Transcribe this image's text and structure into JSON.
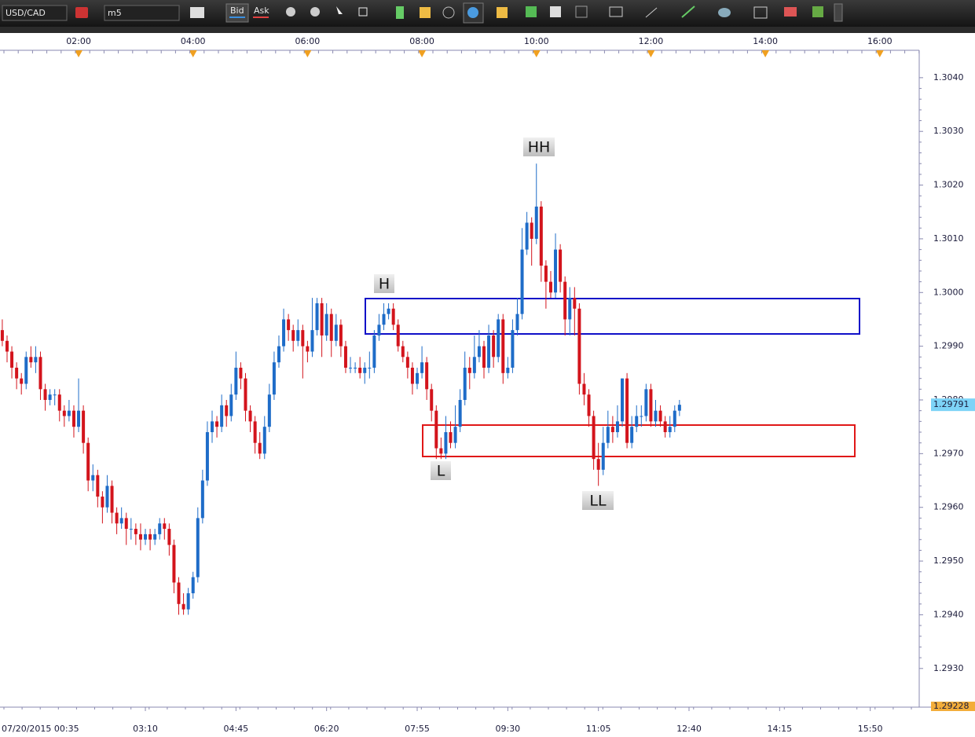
{
  "toolbar": {
    "symbol": "USD/CAD",
    "timeframe": "m5",
    "bid": "Bid",
    "ask": "Ask"
  },
  "chart_data": {
    "type": "candlestick",
    "up_color": "#1e6cc8",
    "down_color": "#d3141c",
    "annotations": [
      "HH",
      "H",
      "L",
      "LL"
    ],
    "ylim": [
      1.29228,
      1.30451
    ],
    "yticks": [
      {
        "value": 1.304,
        "label": "1.3040"
      },
      {
        "value": 1.303,
        "label": "1.3030"
      },
      {
        "value": 1.302,
        "label": "1.3020"
      },
      {
        "value": 1.301,
        "label": "1.3010"
      },
      {
        "value": 1.3,
        "label": "1.3000"
      },
      {
        "value": 1.299,
        "label": "1.2990"
      },
      {
        "value": 1.298,
        "label": "1.2980"
      },
      {
        "value": 1.297,
        "label": "1.2970"
      },
      {
        "value": 1.296,
        "label": "1.2960"
      },
      {
        "value": 1.295,
        "label": "1.2950"
      },
      {
        "value": 1.294,
        "label": "1.2940"
      },
      {
        "value": 1.293,
        "label": "1.2930"
      }
    ],
    "top_xticks": [
      "02:00",
      "04:00",
      "06:00",
      "08:00",
      "10:00",
      "12:00",
      "14:00",
      "16:00"
    ],
    "xticks": [
      {
        "value": "00:35",
        "label": "07/20/2015 00:35"
      },
      "03:10",
      "04:45",
      "06:20",
      "07:55",
      "09:30",
      "11:05",
      "12:40",
      "14:15",
      "15:50"
    ],
    "x": [
      "00:40",
      "00:45",
      "00:50",
      "00:55",
      "01:00",
      "01:05",
      "01:10",
      "01:15",
      "01:20",
      "01:25",
      "01:30",
      "01:35",
      "01:40",
      "01:45",
      "01:50",
      "01:55",
      "02:00",
      "02:05",
      "02:10",
      "02:15",
      "02:20",
      "02:25",
      "02:30",
      "02:35",
      "02:40",
      "02:45",
      "02:50",
      "02:55",
      "03:00",
      "03:05",
      "03:10",
      "03:15",
      "03:20",
      "03:25",
      "03:30",
      "03:35",
      "03:40",
      "03:45",
      "03:50",
      "03:55",
      "04:00",
      "04:05",
      "04:10",
      "04:15",
      "04:20",
      "04:25",
      "04:30",
      "04:35",
      "04:40",
      "04:45",
      "04:50",
      "04:55",
      "05:00",
      "05:05",
      "05:10",
      "05:15",
      "05:20",
      "05:25",
      "05:30",
      "05:35",
      "05:40",
      "05:45",
      "05:50",
      "05:55",
      "06:00",
      "06:05",
      "06:10",
      "06:15",
      "06:20",
      "06:25",
      "06:30",
      "06:35",
      "06:40",
      "06:45",
      "06:50",
      "06:55",
      "07:00",
      "07:05",
      "07:10",
      "07:15",
      "07:20",
      "07:25",
      "07:30",
      "07:35",
      "07:40",
      "07:45",
      "07:50",
      "07:55",
      "08:00",
      "08:05",
      "08:10",
      "08:15",
      "08:20",
      "08:25",
      "08:30",
      "08:35",
      "08:40",
      "08:45",
      "08:50",
      "08:55",
      "09:00",
      "09:05",
      "09:10",
      "09:15",
      "09:20",
      "09:25",
      "09:30",
      "09:35",
      "09:40",
      "09:45",
      "09:50",
      "09:55",
      "10:00",
      "10:05",
      "10:10",
      "10:15",
      "10:20",
      "10:25",
      "10:30",
      "10:35",
      "10:40",
      "10:45",
      "10:50",
      "10:55",
      "11:00",
      "11:05",
      "11:10",
      "11:15",
      "11:20",
      "11:25",
      "11:30",
      "11:35",
      "11:40",
      "11:45",
      "11:50",
      "11:55",
      "12:00",
      "12:05",
      "12:10",
      "12:15",
      "12:20",
      "12:25",
      "12:30"
    ],
    "series": [
      {
        "name": "USD/CAD",
        "ohlc": [
          [
            1.2993,
            1.2995,
            1.299,
            1.2991
          ],
          [
            1.2991,
            1.2992,
            1.2987,
            1.2989
          ],
          [
            1.2989,
            1.299,
            1.2984,
            1.2986
          ],
          [
            1.2986,
            1.2987,
            1.2982,
            1.2984
          ],
          [
            1.2984,
            1.2985,
            1.2981,
            1.2983
          ],
          [
            1.2983,
            1.2989,
            1.2982,
            1.2988
          ],
          [
            1.2988,
            1.299,
            1.2986,
            1.2987
          ],
          [
            1.2987,
            1.299,
            1.2985,
            1.2988
          ],
          [
            1.2988,
            1.2989,
            1.298,
            1.2982
          ],
          [
            1.2982,
            1.2983,
            1.2978,
            1.298
          ],
          [
            1.298,
            1.2982,
            1.2979,
            1.2981
          ],
          [
            1.2981,
            1.2982,
            1.2979,
            1.2981
          ],
          [
            1.2981,
            1.2982,
            1.2976,
            1.2978
          ],
          [
            1.2978,
            1.2979,
            1.2975,
            1.2977
          ],
          [
            1.2977,
            1.298,
            1.2976,
            1.2978
          ],
          [
            1.2978,
            1.2979,
            1.2973,
            1.2975
          ],
          [
            1.2975,
            1.2984,
            1.2974,
            1.2978
          ],
          [
            1.2978,
            1.2979,
            1.297,
            1.2972
          ],
          [
            1.2972,
            1.2973,
            1.2963,
            1.2965
          ],
          [
            1.2965,
            1.2968,
            1.2963,
            1.2966
          ],
          [
            1.2966,
            1.2967,
            1.296,
            1.2962
          ],
          [
            1.2962,
            1.2963,
            1.2957,
            1.296
          ],
          [
            1.296,
            1.2966,
            1.2959,
            1.2964
          ],
          [
            1.2964,
            1.2965,
            1.2957,
            1.2959
          ],
          [
            1.2959,
            1.296,
            1.2955,
            1.2957
          ],
          [
            1.2957,
            1.296,
            1.2956,
            1.2958
          ],
          [
            1.2958,
            1.2959,
            1.2953,
            1.2956
          ],
          [
            1.2956,
            1.2958,
            1.2954,
            1.2956
          ],
          [
            1.2956,
            1.2957,
            1.2953,
            1.2955
          ],
          [
            1.2955,
            1.2957,
            1.2952,
            1.2954
          ],
          [
            1.2954,
            1.2956,
            1.2953,
            1.2955
          ],
          [
            1.2955,
            1.2956,
            1.2952,
            1.2954
          ],
          [
            1.2954,
            1.2956,
            1.2953,
            1.2955
          ],
          [
            1.2955,
            1.2958,
            1.2954,
            1.2957
          ],
          [
            1.2957,
            1.2958,
            1.2954,
            1.2956
          ],
          [
            1.2956,
            1.2957,
            1.2951,
            1.2953
          ],
          [
            1.2953,
            1.2954,
            1.2944,
            1.2946
          ],
          [
            1.2946,
            1.2947,
            1.294,
            1.2942
          ],
          [
            1.2942,
            1.2944,
            1.294,
            1.2941
          ],
          [
            1.2941,
            1.2945,
            1.294,
            1.2944
          ],
          [
            1.2944,
            1.2948,
            1.2943,
            1.2947
          ],
          [
            1.2947,
            1.296,
            1.2946,
            1.2958
          ],
          [
            1.2958,
            1.2967,
            1.2957,
            1.2965
          ],
          [
            1.2965,
            1.2976,
            1.2964,
            1.2974
          ],
          [
            1.2974,
            1.2978,
            1.2972,
            1.2976
          ],
          [
            1.2976,
            1.2977,
            1.2973,
            1.2975
          ],
          [
            1.2975,
            1.2981,
            1.2974,
            1.2979
          ],
          [
            1.2979,
            1.298,
            1.2975,
            1.2977
          ],
          [
            1.2977,
            1.2983,
            1.2976,
            1.2981
          ],
          [
            1.2981,
            1.2989,
            1.298,
            1.2986
          ],
          [
            1.2986,
            1.2987,
            1.2982,
            1.2984
          ],
          [
            1.2984,
            1.2985,
            1.2976,
            1.2978
          ],
          [
            1.2978,
            1.2979,
            1.2974,
            1.2976
          ],
          [
            1.2976,
            1.2977,
            1.297,
            1.2972
          ],
          [
            1.2972,
            1.2974,
            1.2969,
            1.297
          ],
          [
            1.297,
            1.2977,
            1.2969,
            1.2975
          ],
          [
            1.2975,
            1.2983,
            1.2974,
            1.2981
          ],
          [
            1.2981,
            1.2989,
            1.298,
            1.2987
          ],
          [
            1.2987,
            1.2992,
            1.2986,
            1.299
          ],
          [
            1.299,
            1.2997,
            1.2989,
            1.2995
          ],
          [
            1.2995,
            1.2996,
            1.2991,
            1.2993
          ],
          [
            1.2993,
            1.2994,
            1.2989,
            1.2991
          ],
          [
            1.2991,
            1.2995,
            1.299,
            1.2993
          ],
          [
            1.2993,
            1.2994,
            1.2984,
            1.299
          ],
          [
            1.299,
            1.2991,
            1.2987,
            1.2989
          ],
          [
            1.2989,
            1.2999,
            1.2988,
            1.2993
          ],
          [
            1.2993,
            1.2999,
            1.2992,
            1.2998
          ],
          [
            1.2998,
            1.2999,
            1.2988,
            1.2992
          ],
          [
            1.2992,
            1.2998,
            1.2991,
            1.2996
          ],
          [
            1.2996,
            1.2997,
            1.2988,
            1.2991
          ],
          [
            1.2991,
            1.2996,
            1.299,
            1.2994
          ],
          [
            1.2994,
            1.2995,
            1.2988,
            1.299
          ],
          [
            1.299,
            1.2991,
            1.2985,
            1.2986
          ],
          [
            1.2986,
            1.2988,
            1.2985,
            1.2986
          ],
          [
            1.2986,
            1.2987,
            1.2985,
            1.2986
          ],
          [
            1.2986,
            1.2988,
            1.2984,
            1.2985
          ],
          [
            1.2985,
            1.2987,
            1.2983,
            1.2986
          ],
          [
            1.2986,
            1.2989,
            1.2984,
            1.2986
          ],
          [
            1.2986,
            1.2993,
            1.2985,
            1.2992
          ],
          [
            1.2992,
            1.2996,
            1.2991,
            1.2994
          ],
          [
            1.2994,
            1.2998,
            1.2993,
            1.2996
          ],
          [
            1.2996,
            1.2998,
            1.2995,
            1.2997
          ],
          [
            1.2997,
            1.2998,
            1.2993,
            1.2994
          ],
          [
            1.2994,
            1.2995,
            1.2989,
            1.299
          ],
          [
            1.299,
            1.2991,
            1.2987,
            1.2988
          ],
          [
            1.2988,
            1.2989,
            1.2984,
            1.2986
          ],
          [
            1.2986,
            1.2987,
            1.2981,
            1.2983
          ],
          [
            1.2983,
            1.2986,
            1.2982,
            1.2985
          ],
          [
            1.2985,
            1.299,
            1.2984,
            1.2987
          ],
          [
            1.2987,
            1.2988,
            1.298,
            1.2982
          ],
          [
            1.2982,
            1.2983,
            1.2976,
            1.2978
          ],
          [
            1.2978,
            1.2979,
            1.2969,
            1.2971
          ],
          [
            1.2971,
            1.2973,
            1.2969,
            1.297
          ],
          [
            1.297,
            1.2977,
            1.2969,
            1.2974
          ],
          [
            1.2974,
            1.2976,
            1.2971,
            1.2972
          ],
          [
            1.2972,
            1.2979,
            1.2971,
            1.2975
          ],
          [
            1.2975,
            1.2982,
            1.2974,
            1.298
          ],
          [
            1.298,
            1.2989,
            1.2979,
            1.2986
          ],
          [
            1.2986,
            1.2988,
            1.2982,
            1.2985
          ],
          [
            1.2985,
            1.2992,
            1.2984,
            1.2988
          ],
          [
            1.2988,
            1.2993,
            1.2987,
            1.299
          ],
          [
            1.299,
            1.2991,
            1.2984,
            1.2986
          ],
          [
            1.2986,
            1.2994,
            1.2985,
            1.2992
          ],
          [
            1.2992,
            1.2993,
            1.2986,
            1.2988
          ],
          [
            1.2988,
            1.2996,
            1.2987,
            1.2995
          ],
          [
            1.2995,
            1.2996,
            1.2983,
            1.2985
          ],
          [
            1.2985,
            1.2988,
            1.2984,
            1.2986
          ],
          [
            1.2986,
            1.2995,
            1.2985,
            1.2993
          ],
          [
            1.2993,
            1.2999,
            1.2992,
            1.2996
          ],
          [
            1.2996,
            1.3012,
            1.2995,
            1.3008
          ],
          [
            1.3008,
            1.3015,
            1.3007,
            1.3013
          ],
          [
            1.3013,
            1.3014,
            1.3005,
            1.301
          ],
          [
            1.301,
            1.3024,
            1.3009,
            1.3016
          ],
          [
            1.3016,
            1.3017,
            1.3002,
            1.3005
          ],
          [
            1.3005,
            1.3006,
            1.2997,
            1.3002
          ],
          [
            1.3002,
            1.3004,
            1.2999,
            1.3
          ],
          [
            1.3,
            1.3011,
            1.2999,
            1.3008
          ],
          [
            1.3008,
            1.3009,
            1.3,
            1.3002
          ],
          [
            1.3002,
            1.3003,
            1.2992,
            1.2995
          ],
          [
            1.2995,
            1.3001,
            1.2992,
            1.2999
          ],
          [
            1.2999,
            1.3001,
            1.2992,
            1.2997
          ],
          [
            1.2997,
            1.2998,
            1.2981,
            1.2983
          ],
          [
            1.2983,
            1.2985,
            1.2979,
            1.2981
          ],
          [
            1.2981,
            1.2982,
            1.2975,
            1.2977
          ],
          [
            1.2977,
            1.2978,
            1.2967,
            1.2969
          ],
          [
            1.2969,
            1.2972,
            1.2964,
            1.2967
          ],
          [
            1.2967,
            1.2975,
            1.2966,
            1.2972
          ],
          [
            1.2972,
            1.2978,
            1.2971,
            1.2975
          ],
          [
            1.2975,
            1.2977,
            1.2972,
            1.2974
          ],
          [
            1.2974,
            1.2979,
            1.2973,
            1.2976
          ],
          [
            1.2976,
            1.2984,
            1.2975,
            1.2984
          ],
          [
            1.2984,
            1.2985,
            1.2971,
            1.2972
          ],
          [
            1.2972,
            1.2977,
            1.2971,
            1.2975
          ],
          [
            1.2975,
            1.2979,
            1.2974,
            1.2977
          ],
          [
            1.2977,
            1.2979,
            1.2975,
            1.2977
          ],
          [
            1.2977,
            1.2983,
            1.2976,
            1.2982
          ],
          [
            1.2982,
            1.2983,
            1.2975,
            1.2976
          ],
          [
            1.2976,
            1.298,
            1.2975,
            1.2978
          ],
          [
            1.2978,
            1.2979,
            1.2975,
            1.2976
          ],
          [
            1.2976,
            1.2977,
            1.2973,
            1.2974
          ],
          [
            1.2974,
            1.2977,
            1.2973,
            1.2975
          ],
          [
            1.2975,
            1.2979,
            1.2974,
            1.2978
          ],
          [
            1.2978,
            1.298,
            1.2977,
            1.29791
          ]
        ]
      }
    ]
  }
}
